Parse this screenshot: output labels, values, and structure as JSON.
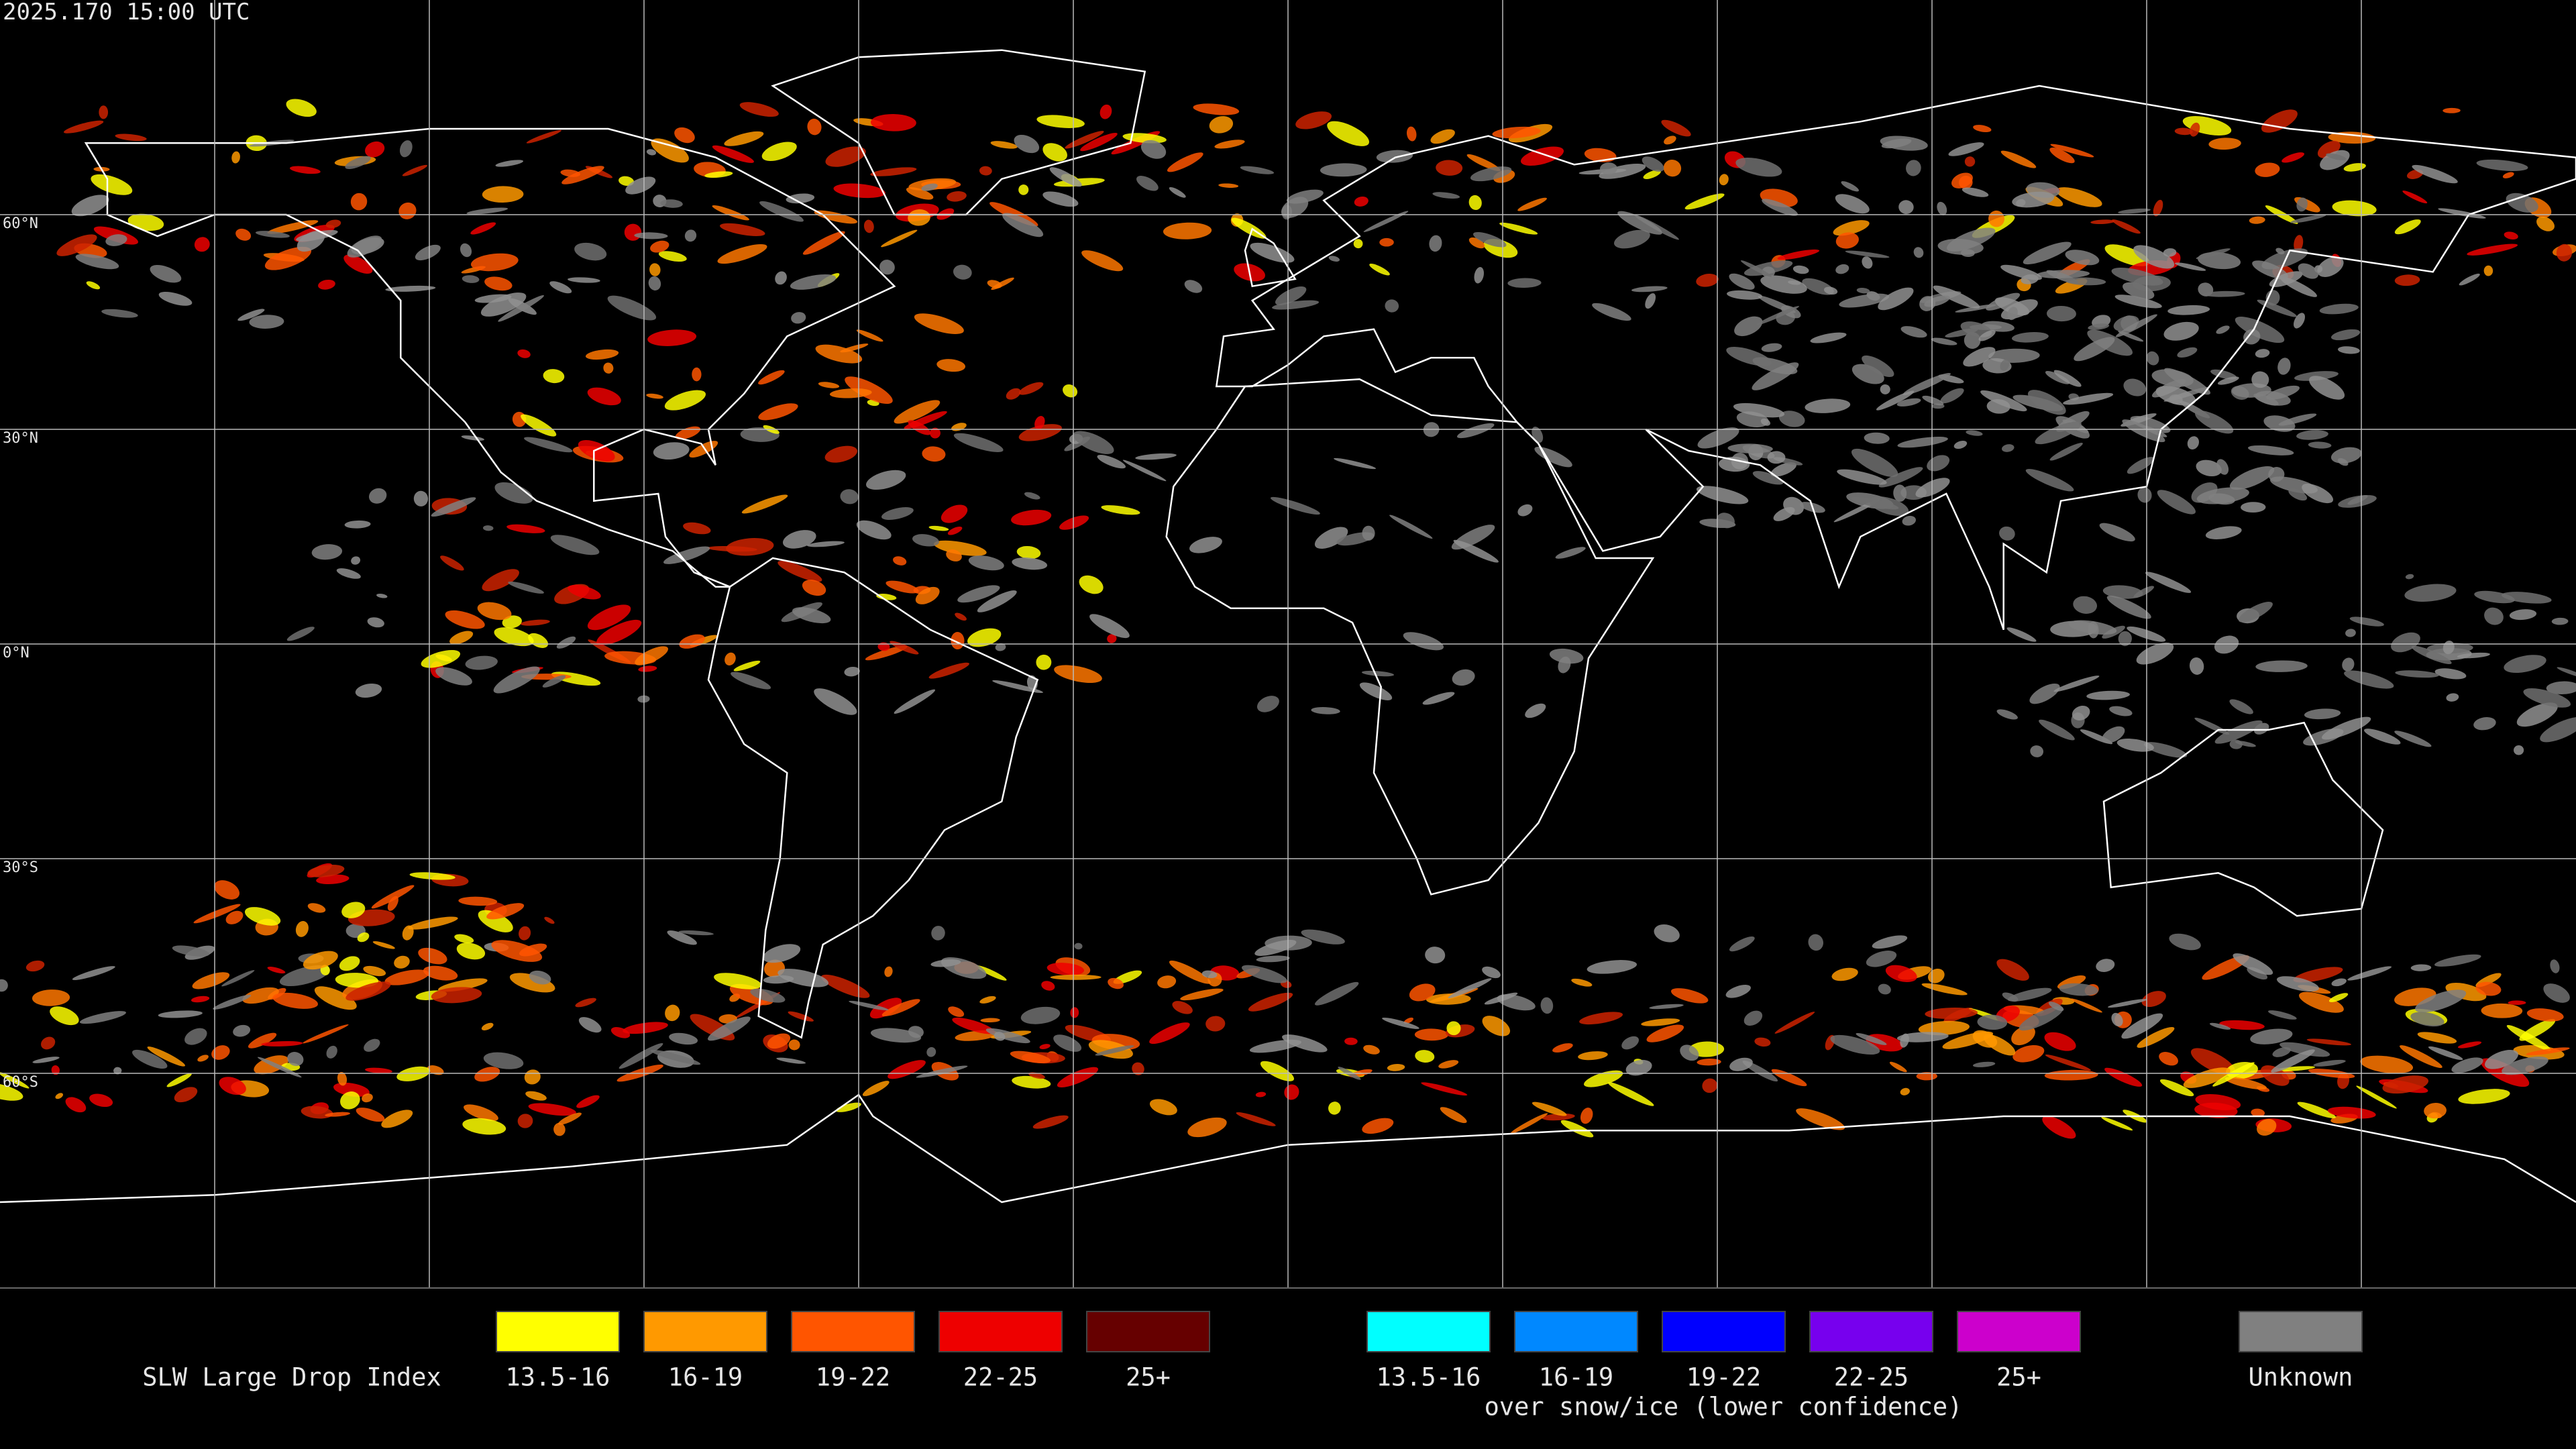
{
  "header": {
    "timestamp": "2025.170 15:00 UTC"
  },
  "map": {
    "latitude_labels": [
      "60°N",
      "30°N",
      "0°N",
      "30°S",
      "60°S"
    ]
  },
  "legend": {
    "title": "SLW Large Drop Index",
    "classes": [
      {
        "label": "13.5-16",
        "color": "#ffff00"
      },
      {
        "label": "16-19",
        "color": "#ff9900"
      },
      {
        "label": "19-22",
        "color": "#ff5500"
      },
      {
        "label": "22-25",
        "color": "#ee0000"
      },
      {
        "label": "25+",
        "color": "#660000"
      }
    ],
    "snow_ice_classes": [
      {
        "label": "13.5-16",
        "color": "#00ffff"
      },
      {
        "label": "16-19",
        "color": "#0088ff"
      },
      {
        "label": "19-22",
        "color": "#0000ff"
      },
      {
        "label": "22-25",
        "color": "#7700ee"
      },
      {
        "label": "25+",
        "color": "#cc00cc"
      }
    ],
    "snow_ice_note": "over snow/ice (lower confidence)",
    "unknown": {
      "label": "Unknown",
      "color": "#808080"
    }
  }
}
